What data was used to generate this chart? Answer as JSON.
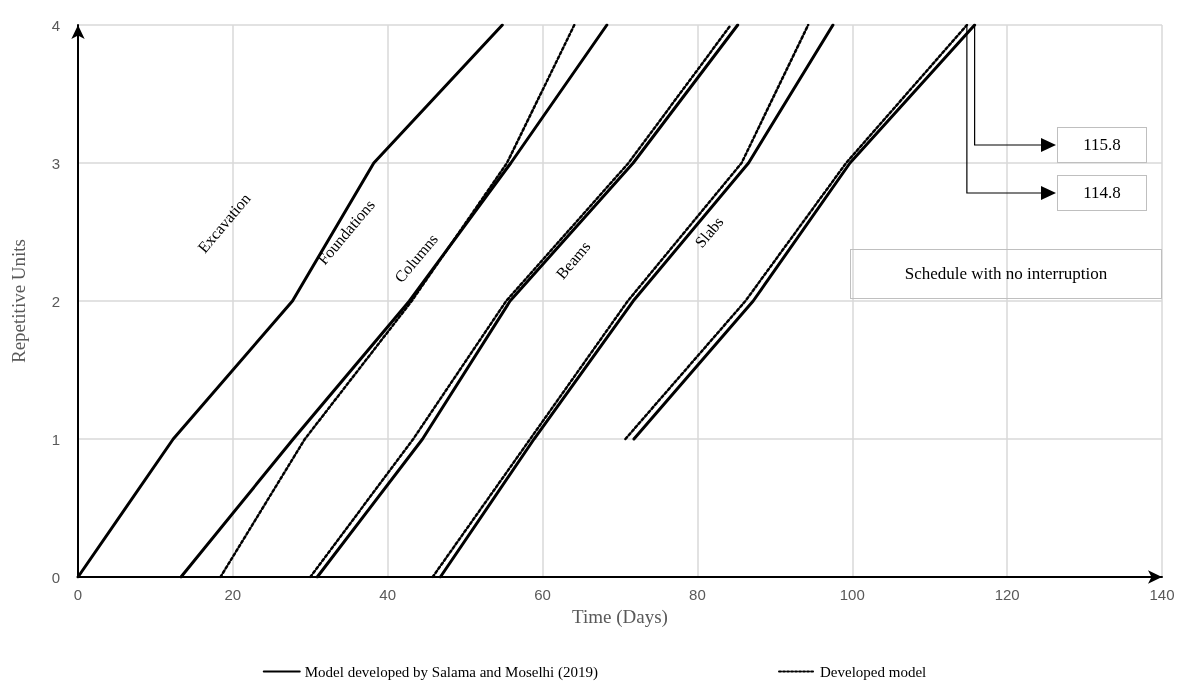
{
  "chart_data": {
    "type": "line",
    "xlabel": "Time (Days)",
    "ylabel": "Repetitive Units",
    "xlim": [
      0,
      140
    ],
    "xticks": [
      0,
      20,
      40,
      60,
      80,
      100,
      120,
      140
    ],
    "ylim": [
      0,
      4
    ],
    "yticks": [
      0,
      1,
      2,
      3,
      4
    ],
    "grid": true,
    "legend": "bottom",
    "marker": "none",
    "series": [
      {
        "name": "Model developed by Salama and Moselhi (2019)",
        "color": "#000000",
        "line_style": "solid",
        "x": [
          0,
          12.3,
          27.7,
          38.2,
          54.8,
          null,
          13.3,
          27.8,
          42.8,
          55.9,
          68.3,
          null,
          30.9,
          44.5,
          55.8,
          71.7,
          85.2,
          null,
          46.8,
          58.9,
          71.7,
          86.6,
          97.5,
          null,
          71.8,
          87.2,
          99.7,
          115.8
        ],
        "values": [
          0,
          1,
          2,
          3,
          4,
          null,
          0,
          1,
          2,
          3,
          4,
          null,
          0,
          1,
          2,
          3,
          4,
          null,
          0,
          1,
          2,
          3,
          4,
          null,
          1,
          2,
          3,
          4
        ]
      },
      {
        "name": "Developed model",
        "color": "#000000",
        "line_style": "dotted",
        "x": [
          18.4,
          29.3,
          43.1,
          55.4,
          64.1,
          null,
          30.0,
          43.3,
          55.3,
          71.1,
          84.3,
          null,
          45.8,
          58.4,
          71.0,
          85.7,
          94.3,
          null,
          70.7,
          86.2,
          99.2,
          114.8
        ],
        "values": [
          0,
          1,
          2,
          3,
          4,
          null,
          0,
          1,
          2,
          3,
          4,
          null,
          0,
          1,
          2,
          3,
          4,
          null,
          1,
          2,
          3,
          4
        ]
      }
    ],
    "annotations": [
      "Excavation",
      "Foundations",
      "Columns",
      "Beams",
      "Slabs",
      "115.8",
      "114.8",
      "Schedule with no interruption"
    ]
  }
}
